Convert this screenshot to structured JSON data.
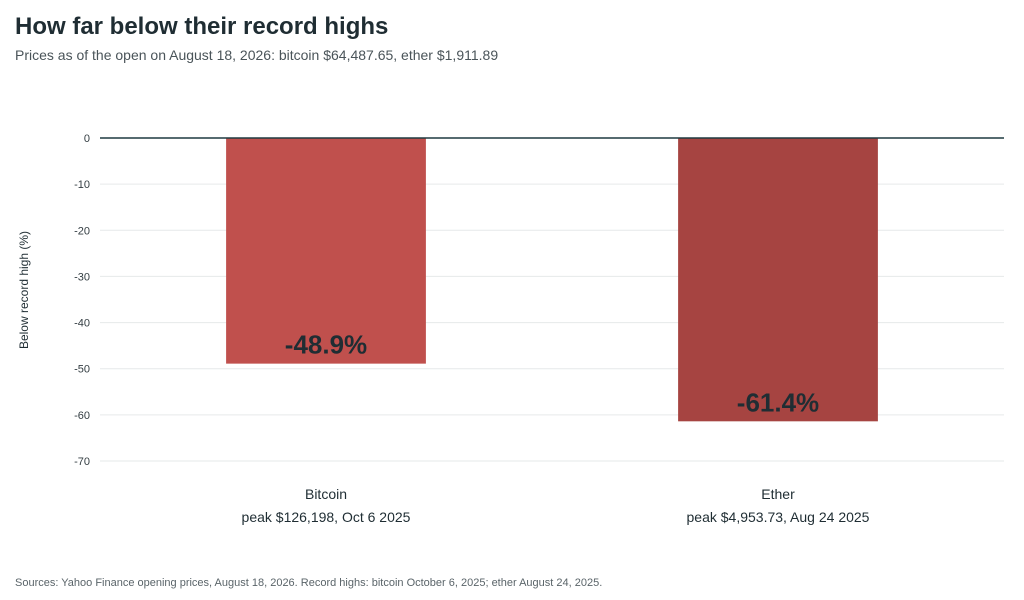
{
  "chart_data": {
    "type": "bar",
    "title": "How far below their record highs",
    "subtitle": "Prices as of the open on August 18, 2026: bitcoin $64,487.65, ether $1,911.89",
    "ylabel": "Below record high (%)",
    "ylim": [
      -70,
      0
    ],
    "yticks": [
      0,
      -10,
      -20,
      -30,
      -40,
      -50,
      -60,
      -70
    ],
    "grid": true,
    "categories": [
      {
        "name": "Bitcoin",
        "detail": "peak $126,198, Oct 6 2025",
        "value": -48.9,
        "label": "-48.9%",
        "color": "#c0504d"
      },
      {
        "name": "Ether",
        "detail": "peak $4,953.73, Aug 24 2025",
        "value": -61.4,
        "label": "-61.4%",
        "color": "#a64441"
      }
    ],
    "source": "Sources: Yahoo Finance opening prices, August 18, 2026. Record highs: bitcoin October 6, 2025; ether August 24, 2025."
  }
}
